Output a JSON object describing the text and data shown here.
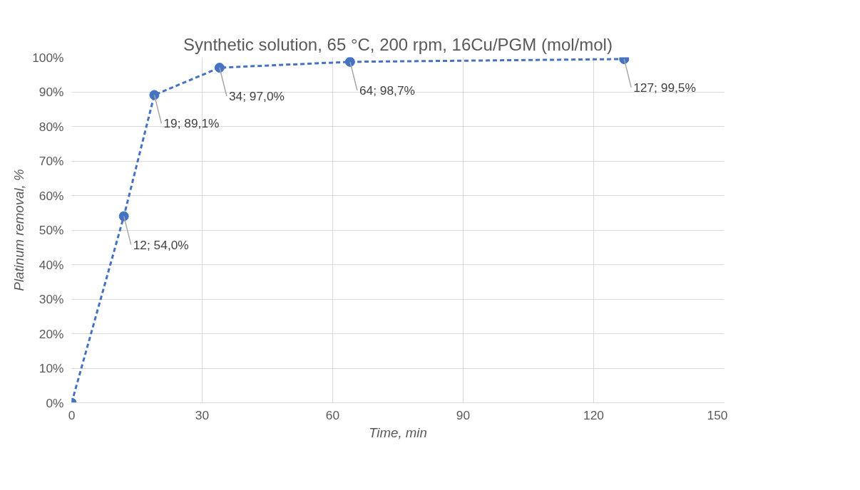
{
  "chart_data": {
    "type": "line",
    "title": "Synthetic solution, 65 °C, 200 rpm, 16Cu/PGM (mol/mol)",
    "xlabel": "Time, min",
    "ylabel": "Platinum removal, %",
    "x": [
      0,
      12,
      19,
      34,
      64,
      127
    ],
    "series": [
      {
        "color": "#4472c4",
        "values": [
          0,
          54.0,
          89.1,
          97.0,
          98.7,
          99.5
        ],
        "value_labels": [
          null,
          "12; 54,0%",
          "19; 89,1%",
          "34; 97,0%",
          "64; 98,7%",
          "127; 99,5%"
        ]
      }
    ],
    "xlim": [
      0,
      150
    ],
    "xticks": [
      0,
      30,
      60,
      90,
      120,
      150
    ],
    "ylim": [
      0,
      100
    ],
    "yticks": [
      {
        "value": 0,
        "label": "0%"
      },
      {
        "value": 10,
        "label": "10%"
      },
      {
        "value": 20,
        "label": "20%"
      },
      {
        "value": 30,
        "label": "30%"
      },
      {
        "value": 40,
        "label": "40%"
      },
      {
        "value": 50,
        "label": "50%"
      },
      {
        "value": 60,
        "label": "60%"
      },
      {
        "value": 70,
        "label": "70%"
      },
      {
        "value": 80,
        "label": "80%"
      },
      {
        "value": 90,
        "label": "90%"
      },
      {
        "value": 100,
        "label": "100%"
      }
    ],
    "grid": true,
    "marker": "circle",
    "line_style": "dashed"
  }
}
